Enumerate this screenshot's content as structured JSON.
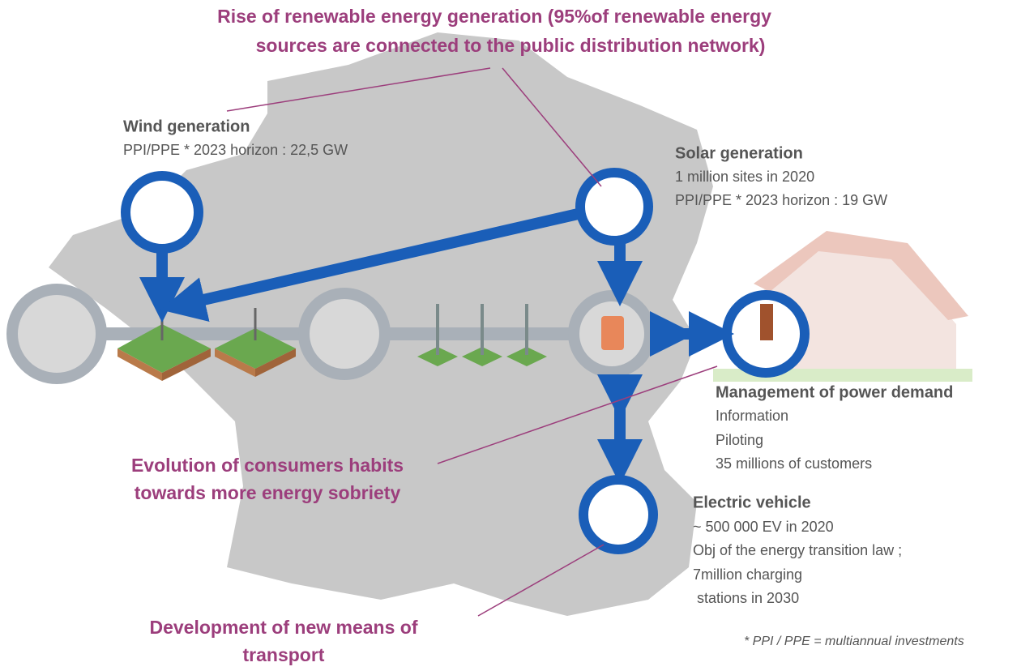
{
  "headline": {
    "lines": [
      "Rise of renewable energy generation (95%of renewable energy",
      "sources are connected to the public distribution network)"
    ]
  },
  "wind": {
    "title": "Wind generation",
    "lines": [
      "PPI/PPE * 2023 horizon : 22,5 GW"
    ]
  },
  "solar": {
    "title": "Solar generation",
    "lines": [
      "1 million sites in 2020",
      "PPI/PPE * 2023 horizon : 19 GW"
    ]
  },
  "demand": {
    "title": "Management of power demand",
    "lines": [
      "Information",
      "Piloting",
      "35 millions of customers"
    ]
  },
  "vehicle": {
    "title": "Electric vehicle",
    "lines": [
      "~ 500 000 EV in 2020",
      "Obj of the energy transition law ;",
      "7million charging",
      " stations in 2030"
    ]
  },
  "habits": {
    "lines": [
      "Evolution of consumers habits",
      "towards more energy sobriety"
    ]
  },
  "transport": {
    "lines": [
      "Development of new means of",
      "transport"
    ]
  },
  "footnote": "* PPI / PPE = multiannual investments"
}
